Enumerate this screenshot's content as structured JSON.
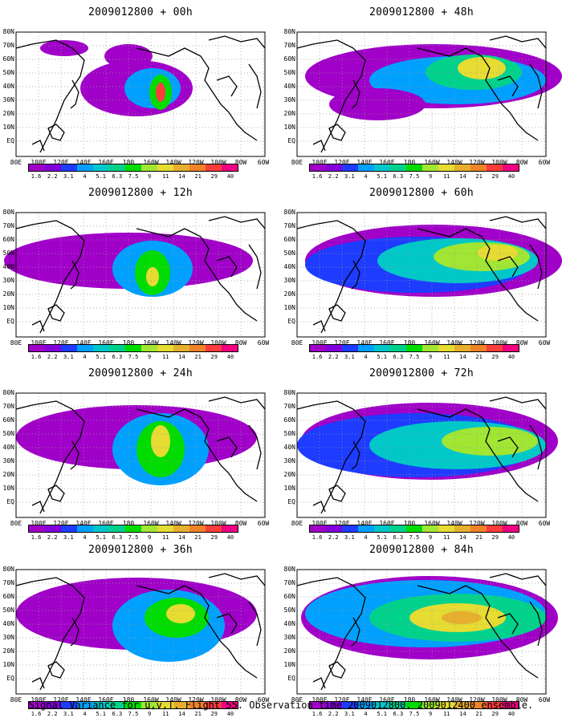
{
  "panels": [
    {
      "title": "2009012800 + 00h"
    },
    {
      "title": "2009012800 + 48h"
    },
    {
      "title": "2009012800 + 12h"
    },
    {
      "title": "2009012800 + 60h"
    },
    {
      "title": "2009012800 + 24h"
    },
    {
      "title": "2009012800 + 72h"
    },
    {
      "title": "2009012800 + 36h"
    },
    {
      "title": "2009012800 + 84h"
    }
  ],
  "lat_labels": [
    "80N",
    "70N",
    "60N",
    "50N",
    "40N",
    "30N",
    "20N",
    "10N",
    "EQ"
  ],
  "lon_labels": [
    "80E",
    "100E",
    "120E",
    "140E",
    "160E",
    "180",
    "160W",
    "140W",
    "120W",
    "100W",
    "80W",
    "60W"
  ],
  "colorbar": {
    "labels": [
      "1.6",
      "2.2",
      "3.1",
      "4",
      "5.1",
      "6.3",
      "7.5",
      "9",
      "11",
      "14",
      "21",
      "29",
      "40"
    ],
    "colors": [
      "#a000c8",
      "#8200dc",
      "#1e3cff",
      "#00a0ff",
      "#00c8c8",
      "#00d28c",
      "#00dc00",
      "#a0e632",
      "#e6dc32",
      "#e6af2d",
      "#f08228",
      "#fa3c3c",
      "#f00082"
    ]
  },
  "caption": "Signal Variance for u,v,T. Flight 55. Observation time 2009012800. 2009012400 ensemble."
}
